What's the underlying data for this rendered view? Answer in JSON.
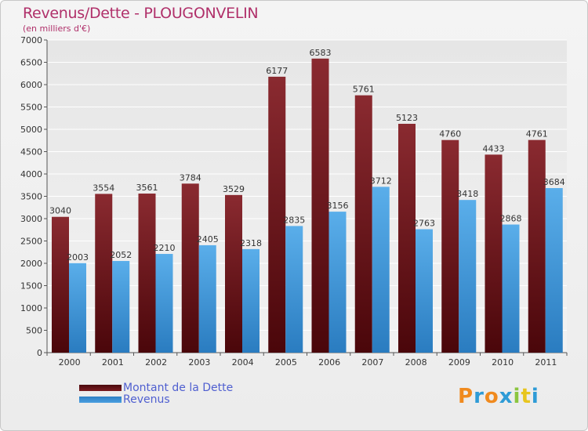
{
  "title": "Revenus/Dette - PLOUGONVELIN",
  "subtitle": "(en milliers d'€)",
  "colors": {
    "dette": "#7a1a1f",
    "revenus": "#4a9fe0",
    "axis_text": "#333333"
  },
  "chart_data": {
    "type": "bar",
    "title": "Revenus/Dette - PLOUGONVELIN",
    "ylabel": "(en milliers d'€)",
    "xlabel": "",
    "ylim": [
      0,
      7000
    ],
    "yticks": [
      0,
      500,
      1000,
      1500,
      2000,
      2500,
      3000,
      3500,
      4000,
      4500,
      5000,
      5500,
      6000,
      6500,
      7000
    ],
    "categories": [
      "2000",
      "2001",
      "2002",
      "2003",
      "2004",
      "2005",
      "2006",
      "2007",
      "2008",
      "2009",
      "2010",
      "2011"
    ],
    "series": [
      {
        "name": "Montant de la Dette",
        "values": [
          3040,
          3554,
          3561,
          3784,
          3529,
          6177,
          6583,
          5761,
          5123,
          4760,
          4433,
          4761
        ]
      },
      {
        "name": "Revenus",
        "values": [
          2003,
          2052,
          2210,
          2405,
          2318,
          2835,
          3156,
          3712,
          2763,
          3418,
          2868,
          3684
        ]
      }
    ],
    "legend": "bottom-left"
  },
  "legend": {
    "dette": "Montant de la Dette",
    "revenus": "Revenus"
  },
  "logo": {
    "letters": [
      "P",
      "r",
      "o",
      "x",
      "i",
      "t",
      "i"
    ],
    "colors": [
      "#f08a1e",
      "#2e9bd6",
      "#f08a1e",
      "#2e9bd6",
      "#8bc53f",
      "#e8c51e",
      "#2e9bd6"
    ]
  }
}
